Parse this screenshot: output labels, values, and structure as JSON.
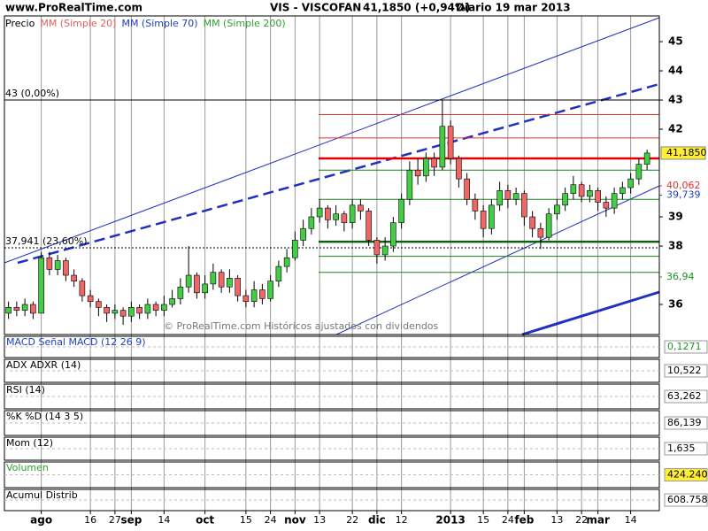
{
  "chart_data": {
    "type": "candlestick",
    "site": "www.ProRealTime.com",
    "title": "VIS - VISCOFAN",
    "price_text": "41,1850 (+0,94%)",
    "period": "Diario 19 mar 2013",
    "legend": [
      {
        "name": "Precio",
        "color": "#000000"
      },
      {
        "name": "MM (Simple 20)",
        "color": "#e06060"
      },
      {
        "name": "MM (Simple 70)",
        "color": "#2040c0"
      },
      {
        "name": "MM (Simple 200)",
        "color": "#30a030"
      }
    ],
    "watermark": "© ProRealTime.com Históricos ajustados con dividendos",
    "up_color": "#44cc44",
    "down_color": "#ee6666",
    "categories": [
      null,
      null,
      null,
      null,
      "ago",
      null,
      null,
      null,
      null,
      null,
      "16",
      null,
      null,
      "27",
      null,
      "sep",
      null,
      null,
      null,
      "14",
      null,
      null,
      null,
      null,
      "oct",
      null,
      null,
      null,
      null,
      "15",
      null,
      null,
      "24",
      null,
      null,
      "nov",
      null,
      null,
      "13",
      null,
      null,
      null,
      "22",
      null,
      null,
      "dic",
      null,
      null,
      "12",
      null,
      null,
      null,
      null,
      null,
      "2013",
      null,
      null,
      null,
      "15",
      null,
      null,
      "24",
      null,
      "feb",
      null,
      null,
      null,
      "13",
      null,
      null,
      "22",
      null,
      "mar",
      null,
      null,
      null,
      "14",
      null,
      null
    ],
    "open": [
      35.7,
      35.9,
      35.8,
      36.0,
      35.7,
      37.6,
      37.2,
      37.5,
      37.0,
      36.8,
      36.3,
      36.1,
      35.9,
      35.7,
      35.8,
      35.6,
      35.9,
      35.7,
      36.0,
      35.8,
      36.0,
      36.2,
      36.6,
      37.0,
      36.4,
      36.7,
      37.1,
      36.6,
      36.9,
      36.3,
      36.1,
      36.5,
      36.2,
      36.8,
      37.3,
      37.6,
      38.2,
      38.6,
      39.0,
      39.3,
      38.9,
      39.1,
      38.8,
      39.4,
      39.2,
      38.2,
      37.7,
      38.0,
      38.8,
      39.6,
      40.6,
      40.4,
      41.0,
      40.7,
      42.1,
      41.0,
      40.3,
      39.6,
      39.2,
      38.6,
      39.4,
      39.9,
      39.6,
      39.8,
      39.0,
      38.6,
      38.3,
      39.1,
      39.4,
      39.8,
      40.1,
      39.7,
      39.9,
      39.5,
      39.3,
      39.8,
      40.0,
      40.3,
      40.8
    ],
    "high": [
      36.1,
      36.1,
      36.2,
      36.1,
      37.8,
      37.8,
      37.7,
      37.6,
      37.2,
      36.9,
      36.5,
      36.2,
      36.0,
      36.0,
      35.9,
      36.1,
      36.0,
      36.2,
      36.1,
      36.3,
      36.5,
      36.9,
      38.0,
      37.1,
      37.0,
      37.4,
      37.2,
      37.2,
      37.0,
      36.5,
      36.8,
      36.7,
      37.0,
      37.5,
      37.9,
      38.5,
      38.9,
      39.3,
      39.6,
      39.4,
      39.4,
      39.2,
      39.6,
      39.6,
      39.3,
      38.3,
      38.3,
      39.0,
      39.8,
      40.9,
      41.0,
      41.2,
      41.2,
      43.0,
      42.3,
      41.1,
      40.5,
      39.8,
      39.4,
      39.6,
      40.2,
      40.1,
      40.0,
      39.9,
      39.2,
      38.8,
      39.3,
      39.6,
      40.0,
      40.4,
      40.2,
      40.1,
      40.0,
      39.7,
      40.0,
      40.2,
      40.5,
      41.0,
      41.3
    ],
    "low": [
      35.5,
      35.6,
      35.6,
      35.5,
      35.7,
      37.0,
      37.0,
      36.8,
      36.6,
      36.1,
      35.9,
      35.6,
      35.4,
      35.5,
      35.3,
      35.4,
      35.5,
      35.5,
      35.6,
      35.6,
      35.9,
      36.0,
      36.4,
      36.2,
      36.2,
      36.5,
      36.4,
      36.4,
      36.1,
      35.9,
      35.9,
      36.0,
      36.1,
      36.6,
      37.1,
      37.5,
      38.0,
      38.4,
      38.8,
      38.6,
      38.7,
      38.5,
      38.6,
      38.9,
      38.0,
      37.4,
      37.5,
      37.8,
      38.6,
      39.4,
      40.1,
      40.2,
      40.4,
      40.6,
      40.8,
      40.0,
      39.4,
      38.9,
      38.3,
      38.4,
      39.2,
      39.3,
      39.4,
      38.7,
      38.3,
      37.9,
      38.2,
      38.9,
      39.2,
      39.6,
      39.5,
      39.5,
      39.2,
      39.0,
      39.1,
      39.6,
      39.8,
      40.1,
      40.6
    ],
    "close": [
      35.9,
      35.8,
      36.0,
      35.7,
      37.6,
      37.2,
      37.5,
      37.0,
      36.8,
      36.3,
      36.1,
      35.9,
      35.7,
      35.8,
      35.6,
      35.9,
      35.7,
      36.0,
      35.8,
      36.0,
      36.2,
      36.6,
      37.0,
      36.4,
      36.7,
      37.1,
      36.6,
      36.9,
      36.3,
      36.1,
      36.5,
      36.2,
      36.8,
      37.3,
      37.6,
      38.2,
      38.6,
      39.0,
      39.3,
      38.9,
      39.1,
      38.8,
      39.4,
      39.2,
      38.2,
      37.7,
      38.0,
      38.8,
      39.6,
      40.6,
      40.4,
      41.0,
      40.7,
      42.1,
      41.0,
      40.3,
      39.6,
      39.2,
      38.6,
      39.4,
      39.9,
      39.6,
      39.8,
      39.0,
      38.6,
      38.3,
      39.1,
      39.4,
      39.8,
      40.1,
      39.7,
      39.9,
      39.5,
      39.3,
      39.8,
      40.0,
      40.3,
      40.8,
      41.185
    ],
    "ylim": [
      34.97,
      45.88
    ],
    "yticks": [
      36,
      38,
      39,
      42,
      43,
      44,
      45
    ],
    "grid": true,
    "hlines": [
      {
        "value": 42.5,
        "color": "#e03030"
      },
      {
        "value": 41.7,
        "color": "#e03030"
      },
      {
        "value": 41.0,
        "color": "#e00000",
        "thick": true
      },
      {
        "value": 40.6,
        "color": "#208020"
      },
      {
        "value": 39.6,
        "color": "#208020"
      },
      {
        "value": 38.15,
        "color": "#106010",
        "thick": true
      },
      {
        "value": 37.65,
        "color": "#208020"
      },
      {
        "value": 37.1,
        "color": "#208020"
      }
    ],
    "levels": [
      {
        "value": 43,
        "label": "43 (0,00%)"
      },
      {
        "value": 37.941,
        "label": "37,941 (23,60%)"
      }
    ],
    "price_labels": [
      {
        "value": 41.185,
        "label": "41,1850",
        "color": "#000000",
        "box": "#ffee33"
      },
      {
        "value": 40.062,
        "label": "40,062",
        "color": "#dd3333"
      },
      {
        "value": 39.739,
        "label": "39,739",
        "color": "#2040c0"
      },
      {
        "value": 36.94,
        "label": "36,94",
        "color": "#209020"
      }
    ],
    "panels": [
      {
        "label": "MACD Señal MACD (12 26 9)",
        "color": "#2040c0",
        "last": "0,1271",
        "last_color": "#209020"
      },
      {
        "label": "ADX ADXR (14)",
        "color": "#000000",
        "last": "10,522",
        "last_color": "#000000"
      },
      {
        "label": "RSI (14)",
        "color": "#000000",
        "last": "63,262",
        "last_color": "#000000"
      },
      {
        "label": "%K %D (14 3 5)",
        "color": "#000000",
        "last": "86,139",
        "last_color": "#000000"
      },
      {
        "label": "Mom (12)",
        "color": "#000000",
        "last": "1,635",
        "last_color": "#000000"
      },
      {
        "label": "Volumen",
        "color": "#30a030",
        "last": "424.240",
        "last_color": "#000000",
        "box": "#ffee33"
      },
      {
        "label": "Acumul Distrib",
        "color": "#000000",
        "last": "608.758",
        "last_color": "#000000"
      }
    ]
  }
}
